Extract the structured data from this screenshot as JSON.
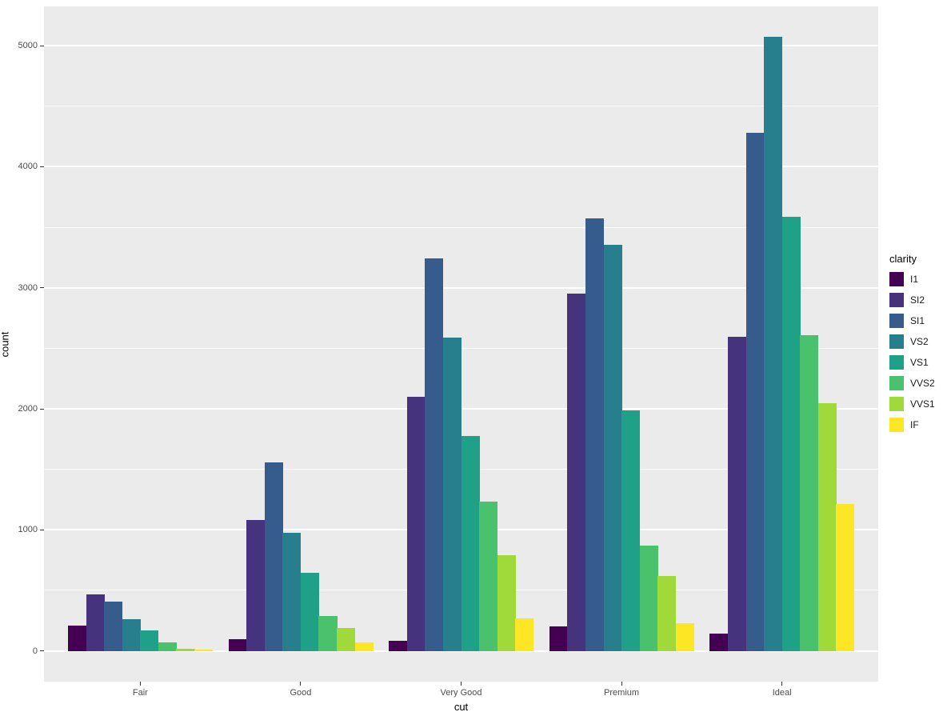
{
  "chart_data": {
    "type": "bar",
    "mode": "grouped-dodge",
    "title": "",
    "xlabel": "cut",
    "ylabel": "count",
    "legend_title": "clarity",
    "legend_position": "right",
    "categories": [
      "Fair",
      "Good",
      "Very Good",
      "Premium",
      "Ideal"
    ],
    "series": [
      {
        "name": "I1",
        "color": "#440154",
        "values": [
          210,
          96,
          84,
          205,
          146
        ]
      },
      {
        "name": "SI2",
        "color": "#46337E",
        "values": [
          466,
          1081,
          2100,
          2949,
          2598
        ]
      },
      {
        "name": "SI1",
        "color": "#365C8D",
        "values": [
          408,
          1560,
          3240,
          3575,
          4282
        ]
      },
      {
        "name": "VS2",
        "color": "#277F8E",
        "values": [
          261,
          978,
          2591,
          3357,
          5071
        ]
      },
      {
        "name": "VS1",
        "color": "#1FA187",
        "values": [
          170,
          648,
          1775,
          1989,
          3589
        ]
      },
      {
        "name": "VVS2",
        "color": "#4AC16D",
        "values": [
          69,
          286,
          1235,
          870,
          2606
        ]
      },
      {
        "name": "VVS1",
        "color": "#9FDA3A",
        "values": [
          17,
          186,
          789,
          616,
          2047
        ]
      },
      {
        "name": "IF",
        "color": "#FDE725",
        "values": [
          9,
          71,
          268,
          230,
          1212
        ]
      }
    ],
    "y_ticks": [
      0,
      1000,
      2000,
      3000,
      4000,
      5000
    ],
    "y_minor_ticks": [
      500,
      1500,
      2500,
      3500,
      4500
    ],
    "ylim": [
      0,
      5071
    ],
    "grid": "major+minor",
    "style": {
      "panel_bg": "#EBEBEB",
      "grid_major_color": "#FFFFFF",
      "grid_minor_color": "#FFFFFF",
      "tick_mark_color": "#333333",
      "tick_label_color": "#4D4D4D",
      "axis_title_color": "#000000",
      "background": "#FFFFFF"
    }
  }
}
